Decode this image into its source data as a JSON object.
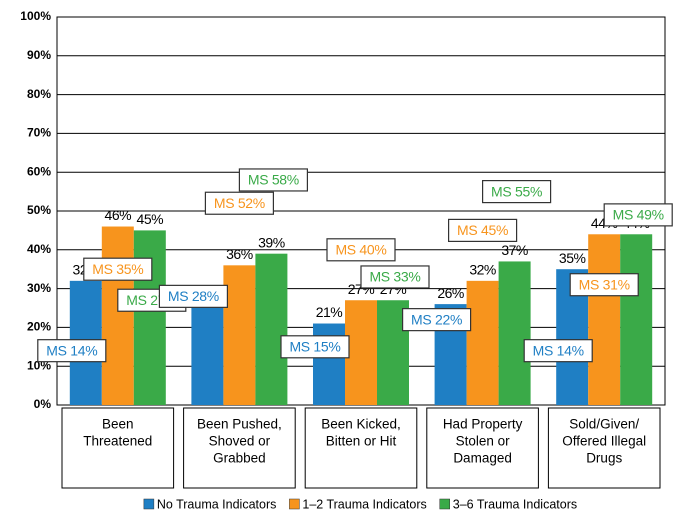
{
  "chart_data": {
    "type": "bar",
    "categories": [
      [
        "Been",
        "Threatened"
      ],
      [
        "Been Pushed,",
        "Shoved or",
        "Grabbed"
      ],
      [
        "Been Kicked,",
        "Bitten or Hit"
      ],
      [
        "Had Property",
        "Stolen or",
        "Damaged"
      ],
      [
        "Sold/Given/",
        "Offered Illegal",
        "Drugs"
      ]
    ],
    "series": [
      {
        "name": "No Trauma Indicators",
        "color": "#1f7fc4",
        "values": [
          32,
          26,
          21,
          26,
          35
        ],
        "value_labels": [
          "32%",
          "26%",
          "21%",
          "26%",
          "35%"
        ],
        "ms_values": [
          14,
          28,
          15,
          22,
          14
        ],
        "ms_labels": [
          "MS 14%",
          "MS 28%",
          "MS 15%",
          "MS 22%",
          "MS 14%"
        ]
      },
      {
        "name": "1–2 Trauma Indicators",
        "color": "#f7941d",
        "values": [
          46,
          36,
          27,
          32,
          44
        ],
        "value_labels": [
          "46%",
          "36%",
          "27%",
          "32%",
          "44%"
        ],
        "ms_values": [
          35,
          52,
          40,
          45,
          31
        ],
        "ms_labels": [
          "MS 35%",
          "MS 52%",
          "MS 40%",
          "MS 45%",
          "MS 31%"
        ]
      },
      {
        "name": "3–6 Trauma Indicators",
        "color": "#3aaa48",
        "values": [
          45,
          39,
          27,
          37,
          44
        ],
        "value_labels": [
          "45%",
          "39%",
          "27%",
          "37%",
          "44%"
        ],
        "ms_values": [
          27,
          58,
          33,
          55,
          49
        ],
        "ms_labels": [
          "MS 27%",
          "MS 58%",
          "MS 33%",
          "MS 55%",
          "MS 49%"
        ]
      }
    ],
    "ylim": [
      0,
      100
    ],
    "yticks": [
      {
        "value": 0,
        "label": "0%"
      },
      {
        "value": 10,
        "label": "10%"
      },
      {
        "value": 20,
        "label": "20%"
      },
      {
        "value": 30,
        "label": "30%"
      },
      {
        "value": 40,
        "label": "40%"
      },
      {
        "value": 50,
        "label": "50%"
      },
      {
        "value": 60,
        "label": "60%"
      },
      {
        "value": 70,
        "label": "70%"
      },
      {
        "value": 80,
        "label": "80%"
      },
      {
        "value": 90,
        "label": "90%"
      },
      {
        "value": 100,
        "label": "100%"
      }
    ],
    "grid": true
  }
}
